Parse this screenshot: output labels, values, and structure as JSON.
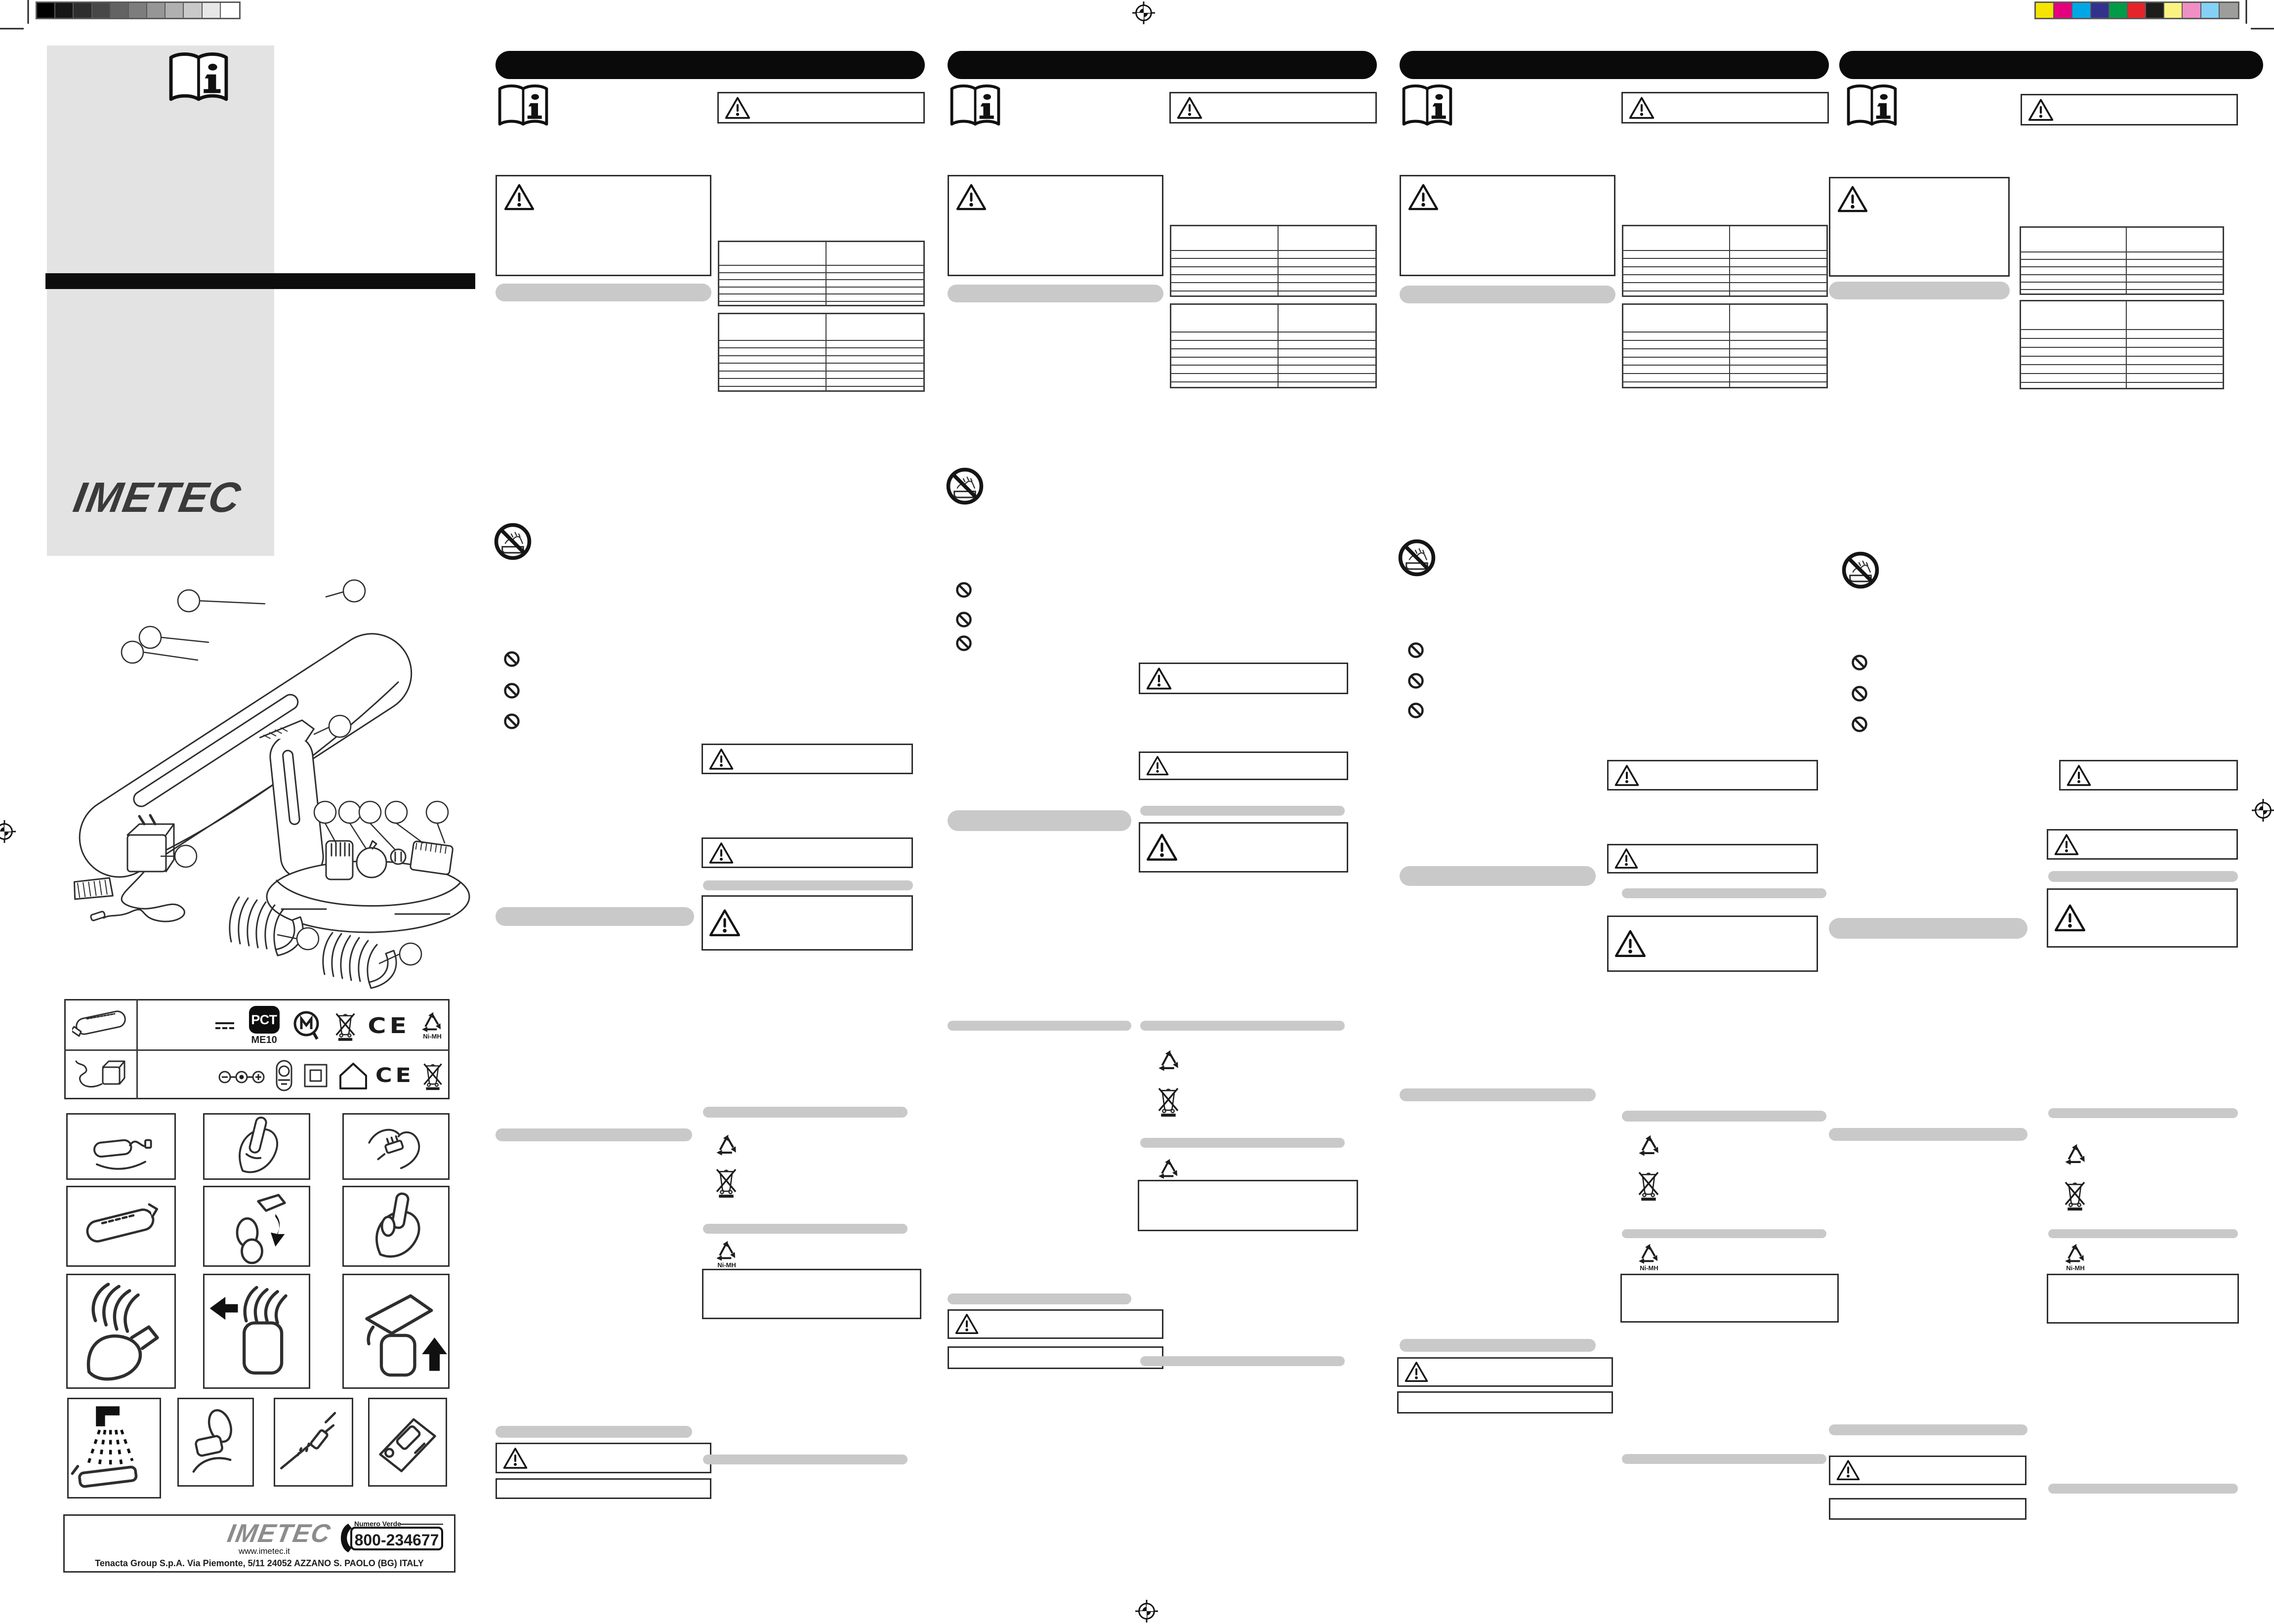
{
  "document": {
    "kind": "printed instruction leaflet scan",
    "brand": "IMETEC"
  },
  "calibration": {
    "grayscale_strip": [
      "#000000",
      "#161616",
      "#2e2e2e",
      "#484848",
      "#636363",
      "#7d7d7d",
      "#969696",
      "#b0b0b0",
      "#c9c9c9",
      "#e7e7e7",
      "#ffffff"
    ],
    "color_strip": [
      "#f5e400",
      "#e6007e",
      "#00a7e7",
      "#32328e",
      "#009b48",
      "#e5232a",
      "#1d1d1b",
      "#fbf381",
      "#f08fc4",
      "#85d1f5",
      "#9d9d9c"
    ]
  },
  "cover": {
    "brand": "IMETEC"
  },
  "labels": {
    "me10": "ME10",
    "nimh": "Ni-MH",
    "ce": "CE",
    "pct": "РСТ"
  },
  "symbols_table": {
    "rows": [
      {
        "item": "clipper-drawing",
        "icons": [
          "dc-symbol",
          "pct-mark",
          "conformity-mark",
          "crossed-bin-icon",
          "ce-mark",
          "nimh-recycle-icon"
        ]
      },
      {
        "item": "adapter-drawing",
        "icons": [
          "polarity-symbol",
          "transformer-symbol",
          "class-ii-symbol",
          "indoor-use-symbol",
          "ce-mark",
          "crossed-bin-icon"
        ]
      }
    ]
  },
  "columns": [
    {
      "id": "language-column-1"
    },
    {
      "id": "language-column-2"
    },
    {
      "id": "language-column-3"
    },
    {
      "id": "language-column-4"
    }
  ],
  "footer": {
    "brand": "IMETEC",
    "website": "www.imetec.it",
    "phone_label": "Numero Verde",
    "phone_number": "800-234677",
    "address": "Tenacta Group S.p.A.  Via Piemonte, 5/11  24052 AZZANO S. PAOLO (BG) ITALY"
  }
}
